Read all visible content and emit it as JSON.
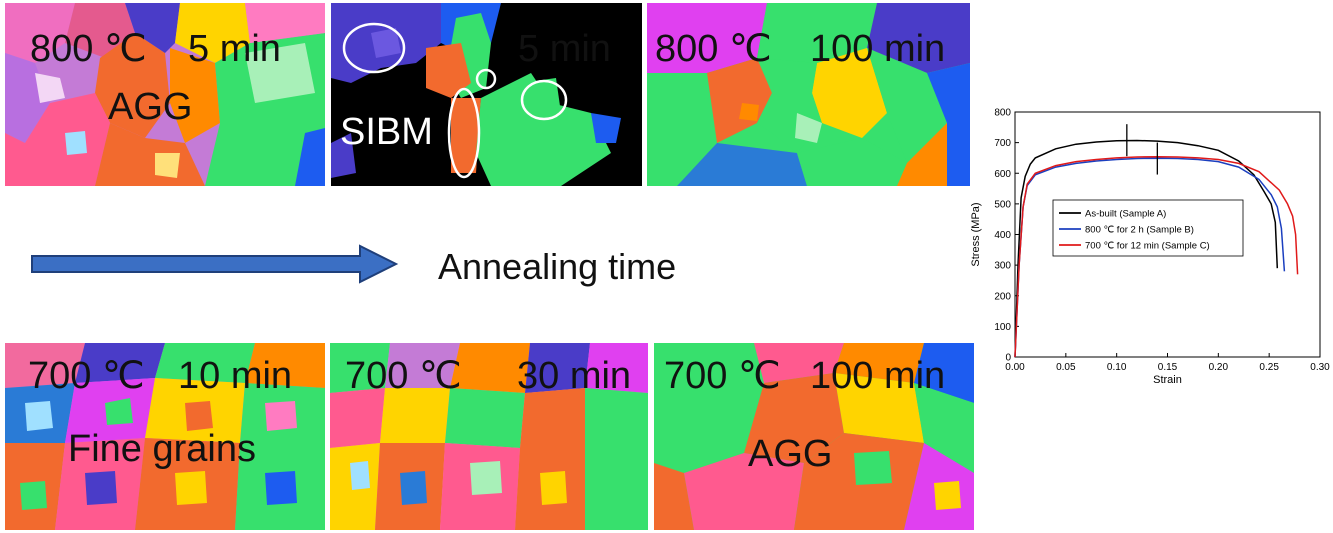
{
  "panels": [
    {
      "id": "p1",
      "labels": [
        "800 ℃",
        "5 min",
        "AGG"
      ],
      "style": "mixed"
    },
    {
      "id": "p2",
      "labels": [
        "5 min",
        "SIBM"
      ],
      "style": "black"
    },
    {
      "id": "p3",
      "labels": [
        "800 ℃",
        "100 min"
      ],
      "style": "coarse"
    },
    {
      "id": "p4",
      "labels": [
        "700 ℃",
        "10 min",
        "Fine grains"
      ],
      "style": "fine"
    },
    {
      "id": "p5",
      "labels": [
        "700 ℃",
        "30 min"
      ],
      "style": "medium"
    },
    {
      "id": "p6",
      "labels": [
        "700 ℃",
        "100 min",
        "AGG"
      ],
      "style": "coarse2"
    }
  ],
  "arrow_label": "Annealing time",
  "colors": {
    "arrow_fill": "#3b6fc4",
    "arrow_stroke": "#1f3f7a",
    "black_bg": "#000000"
  },
  "chart_data": {
    "type": "line",
    "xlabel": "Strain",
    "ylabel": "Stress (MPa)",
    "xlim": [
      0.0,
      0.3
    ],
    "ylim": [
      0,
      800
    ],
    "x_ticks": [
      "0.00",
      "0.05",
      "0.10",
      "0.15",
      "0.20",
      "0.25",
      "0.30"
    ],
    "y_ticks": [
      "0",
      "100",
      "200",
      "300",
      "400",
      "500",
      "600",
      "700",
      "800"
    ],
    "legend_position": "center",
    "series": [
      {
        "name": "As-built (Sample A)",
        "color": "#000000",
        "x": [
          0.0,
          0.003,
          0.006,
          0.01,
          0.015,
          0.02,
          0.04,
          0.06,
          0.08,
          0.1,
          0.12,
          0.14,
          0.16,
          0.18,
          0.2,
          0.22,
          0.235,
          0.245,
          0.252,
          0.256,
          0.258
        ],
        "y": [
          0,
          300,
          520,
          590,
          630,
          650,
          680,
          695,
          702,
          706,
          707,
          705,
          700,
          690,
          675,
          640,
          595,
          540,
          500,
          440,
          290
        ]
      },
      {
        "name": "800 ℃ for 2 h (Sample B)",
        "color": "#1b3fbf",
        "x": [
          0.0,
          0.004,
          0.008,
          0.012,
          0.02,
          0.04,
          0.06,
          0.08,
          0.1,
          0.12,
          0.14,
          0.16,
          0.18,
          0.2,
          0.22,
          0.24,
          0.252,
          0.258,
          0.262,
          0.265
        ],
        "y": [
          0,
          300,
          490,
          560,
          595,
          620,
          632,
          640,
          645,
          648,
          649,
          648,
          645,
          638,
          620,
          580,
          530,
          490,
          420,
          280
        ]
      },
      {
        "name": "700 ℃ for 12 min (Sample C)",
        "color": "#e01a1a",
        "x": [
          0.0,
          0.004,
          0.008,
          0.012,
          0.02,
          0.04,
          0.06,
          0.08,
          0.1,
          0.12,
          0.14,
          0.16,
          0.18,
          0.2,
          0.22,
          0.24,
          0.26,
          0.268,
          0.273,
          0.276,
          0.278
        ],
        "y": [
          0,
          300,
          490,
          565,
          600,
          625,
          638,
          645,
          650,
          653,
          654,
          653,
          650,
          645,
          632,
          605,
          545,
          500,
          460,
          400,
          270
        ]
      }
    ],
    "markers": [
      {
        "x": 0.11,
        "y": 708
      },
      {
        "x": 0.14,
        "y": 648
      }
    ]
  }
}
